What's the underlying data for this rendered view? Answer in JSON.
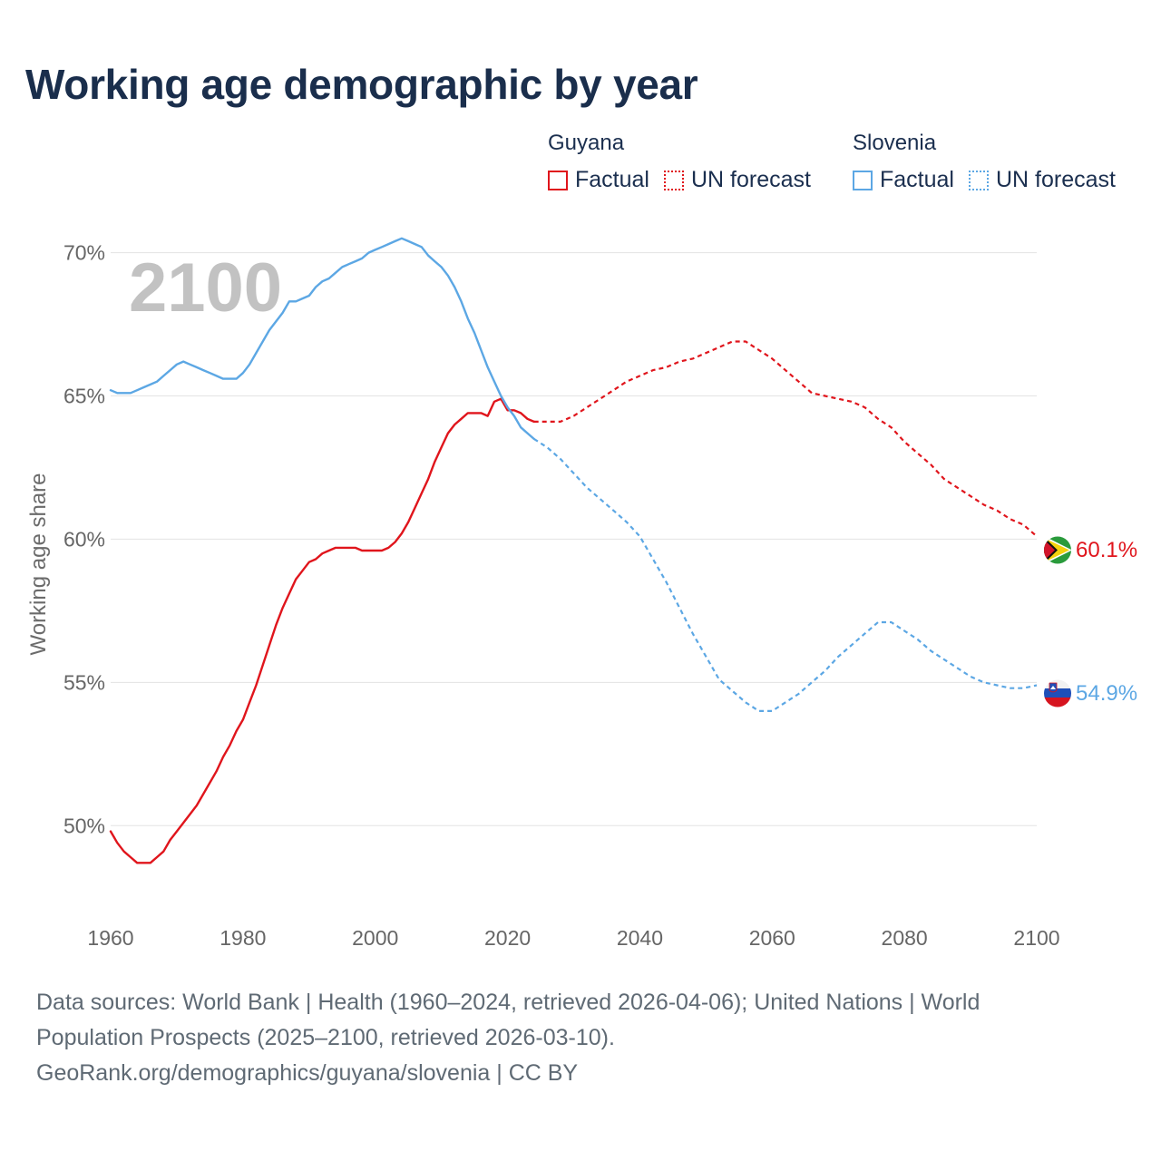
{
  "title": "Working age demographic by year",
  "legend": {
    "groups": [
      {
        "country": "Guyana",
        "color": "#e0151c",
        "factual_label": "Factual",
        "forecast_label": "UN forecast"
      },
      {
        "country": "Slovenia",
        "color": "#5ca7e4",
        "factual_label": "Factual",
        "forecast_label": "UN forecast"
      }
    ]
  },
  "footer": {
    "line1": "Data sources: World Bank | Health (1960–2024, retrieved 2026-04-06); United Nations | World",
    "line2": "Population Prospects (2025–2100, retrieved 2026-03-10).",
    "line3": "GeoRank.org/demographics/guyana/slovenia | CC BY"
  },
  "chart_data": {
    "type": "line",
    "title": "Working age demographic by year",
    "year_label": "2100",
    "xlabel": "",
    "ylabel": "Working age share",
    "xlim": [
      1960,
      2100
    ],
    "ylim": [
      47,
      71
    ],
    "x_ticks": [
      1960,
      1980,
      2000,
      2020,
      2040,
      2060,
      2080,
      2100
    ],
    "y_ticks": [
      50,
      55,
      60,
      65,
      70
    ],
    "y_tick_labels": [
      "50%",
      "55%",
      "60%",
      "65%",
      "70%"
    ],
    "grid": true,
    "factual_end_year": 2024,
    "series": [
      {
        "name": "Guyana",
        "color": "#e0151c",
        "end_label": "60.1%",
        "points": [
          [
            1960,
            49.8
          ],
          [
            1961,
            49.4
          ],
          [
            1962,
            49.1
          ],
          [
            1963,
            48.9
          ],
          [
            1964,
            48.7
          ],
          [
            1965,
            48.7
          ],
          [
            1966,
            48.7
          ],
          [
            1967,
            48.9
          ],
          [
            1968,
            49.1
          ],
          [
            1969,
            49.5
          ],
          [
            1970,
            49.8
          ],
          [
            1971,
            50.1
          ],
          [
            1972,
            50.4
          ],
          [
            1973,
            50.7
          ],
          [
            1974,
            51.1
          ],
          [
            1975,
            51.5
          ],
          [
            1976,
            51.9
          ],
          [
            1977,
            52.4
          ],
          [
            1978,
            52.8
          ],
          [
            1979,
            53.3
          ],
          [
            1980,
            53.7
          ],
          [
            1981,
            54.3
          ],
          [
            1982,
            54.9
          ],
          [
            1983,
            55.6
          ],
          [
            1984,
            56.3
          ],
          [
            1985,
            57.0
          ],
          [
            1986,
            57.6
          ],
          [
            1987,
            58.1
          ],
          [
            1988,
            58.6
          ],
          [
            1989,
            58.9
          ],
          [
            1990,
            59.2
          ],
          [
            1991,
            59.3
          ],
          [
            1992,
            59.5
          ],
          [
            1993,
            59.6
          ],
          [
            1994,
            59.7
          ],
          [
            1995,
            59.7
          ],
          [
            1996,
            59.7
          ],
          [
            1997,
            59.7
          ],
          [
            1998,
            59.6
          ],
          [
            1999,
            59.6
          ],
          [
            2000,
            59.6
          ],
          [
            2001,
            59.6
          ],
          [
            2002,
            59.7
          ],
          [
            2003,
            59.9
          ],
          [
            2004,
            60.2
          ],
          [
            2005,
            60.6
          ],
          [
            2006,
            61.1
          ],
          [
            2007,
            61.6
          ],
          [
            2008,
            62.1
          ],
          [
            2009,
            62.7
          ],
          [
            2010,
            63.2
          ],
          [
            2011,
            63.7
          ],
          [
            2012,
            64.0
          ],
          [
            2013,
            64.2
          ],
          [
            2014,
            64.4
          ],
          [
            2015,
            64.4
          ],
          [
            2016,
            64.4
          ],
          [
            2017,
            64.3
          ],
          [
            2018,
            64.8
          ],
          [
            2019,
            64.9
          ],
          [
            2020,
            64.5
          ],
          [
            2021,
            64.5
          ],
          [
            2022,
            64.4
          ],
          [
            2023,
            64.2
          ],
          [
            2024,
            64.1
          ],
          [
            2026,
            64.1
          ],
          [
            2028,
            64.1
          ],
          [
            2030,
            64.3
          ],
          [
            2032,
            64.6
          ],
          [
            2034,
            64.9
          ],
          [
            2036,
            65.2
          ],
          [
            2038,
            65.5
          ],
          [
            2040,
            65.7
          ],
          [
            2042,
            65.9
          ],
          [
            2044,
            66.0
          ],
          [
            2046,
            66.2
          ],
          [
            2048,
            66.3
          ],
          [
            2050,
            66.5
          ],
          [
            2052,
            66.7
          ],
          [
            2054,
            66.9
          ],
          [
            2056,
            66.9
          ],
          [
            2058,
            66.6
          ],
          [
            2060,
            66.3
          ],
          [
            2062,
            65.9
          ],
          [
            2064,
            65.5
          ],
          [
            2066,
            65.1
          ],
          [
            2068,
            65.0
          ],
          [
            2070,
            64.9
          ],
          [
            2072,
            64.8
          ],
          [
            2074,
            64.6
          ],
          [
            2076,
            64.2
          ],
          [
            2078,
            63.9
          ],
          [
            2080,
            63.4
          ],
          [
            2082,
            63.0
          ],
          [
            2084,
            62.6
          ],
          [
            2086,
            62.1
          ],
          [
            2088,
            61.8
          ],
          [
            2090,
            61.5
          ],
          [
            2092,
            61.2
          ],
          [
            2094,
            61.0
          ],
          [
            2096,
            60.7
          ],
          [
            2098,
            60.5
          ],
          [
            2100,
            60.1
          ]
        ]
      },
      {
        "name": "Slovenia",
        "color": "#5ca7e4",
        "end_label": "54.9%",
        "points": [
          [
            1960,
            65.2
          ],
          [
            1961,
            65.1
          ],
          [
            1962,
            65.1
          ],
          [
            1963,
            65.1
          ],
          [
            1964,
            65.2
          ],
          [
            1965,
            65.3
          ],
          [
            1966,
            65.4
          ],
          [
            1967,
            65.5
          ],
          [
            1968,
            65.7
          ],
          [
            1969,
            65.9
          ],
          [
            1970,
            66.1
          ],
          [
            1971,
            66.2
          ],
          [
            1972,
            66.1
          ],
          [
            1973,
            66.0
          ],
          [
            1974,
            65.9
          ],
          [
            1975,
            65.8
          ],
          [
            1976,
            65.7
          ],
          [
            1977,
            65.6
          ],
          [
            1978,
            65.6
          ],
          [
            1979,
            65.6
          ],
          [
            1980,
            65.8
          ],
          [
            1981,
            66.1
          ],
          [
            1982,
            66.5
          ],
          [
            1983,
            66.9
          ],
          [
            1984,
            67.3
          ],
          [
            1985,
            67.6
          ],
          [
            1986,
            67.9
          ],
          [
            1987,
            68.3
          ],
          [
            1988,
            68.3
          ],
          [
            1989,
            68.4
          ],
          [
            1990,
            68.5
          ],
          [
            1991,
            68.8
          ],
          [
            1992,
            69.0
          ],
          [
            1993,
            69.1
          ],
          [
            1994,
            69.3
          ],
          [
            1995,
            69.5
          ],
          [
            1996,
            69.6
          ],
          [
            1997,
            69.7
          ],
          [
            1998,
            69.8
          ],
          [
            1999,
            70.0
          ],
          [
            2000,
            70.1
          ],
          [
            2001,
            70.2
          ],
          [
            2002,
            70.3
          ],
          [
            2003,
            70.4
          ],
          [
            2004,
            70.5
          ],
          [
            2005,
            70.4
          ],
          [
            2006,
            70.3
          ],
          [
            2007,
            70.2
          ],
          [
            2008,
            69.9
          ],
          [
            2009,
            69.7
          ],
          [
            2010,
            69.5
          ],
          [
            2011,
            69.2
          ],
          [
            2012,
            68.8
          ],
          [
            2013,
            68.3
          ],
          [
            2014,
            67.7
          ],
          [
            2015,
            67.2
          ],
          [
            2016,
            66.6
          ],
          [
            2017,
            66.0
          ],
          [
            2018,
            65.5
          ],
          [
            2019,
            65.0
          ],
          [
            2020,
            64.6
          ],
          [
            2021,
            64.3
          ],
          [
            2022,
            63.9
          ],
          [
            2023,
            63.7
          ],
          [
            2024,
            63.5
          ],
          [
            2026,
            63.2
          ],
          [
            2028,
            62.8
          ],
          [
            2030,
            62.3
          ],
          [
            2032,
            61.8
          ],
          [
            2034,
            61.4
          ],
          [
            2036,
            61.0
          ],
          [
            2038,
            60.6
          ],
          [
            2040,
            60.1
          ],
          [
            2042,
            59.3
          ],
          [
            2044,
            58.5
          ],
          [
            2046,
            57.6
          ],
          [
            2048,
            56.7
          ],
          [
            2050,
            55.9
          ],
          [
            2052,
            55.1
          ],
          [
            2054,
            54.7
          ],
          [
            2056,
            54.3
          ],
          [
            2058,
            54.0
          ],
          [
            2060,
            54.0
          ],
          [
            2062,
            54.3
          ],
          [
            2064,
            54.6
          ],
          [
            2066,
            55.0
          ],
          [
            2068,
            55.4
          ],
          [
            2070,
            55.9
          ],
          [
            2072,
            56.3
          ],
          [
            2074,
            56.7
          ],
          [
            2076,
            57.1
          ],
          [
            2078,
            57.1
          ],
          [
            2080,
            56.8
          ],
          [
            2082,
            56.5
          ],
          [
            2084,
            56.1
          ],
          [
            2086,
            55.8
          ],
          [
            2088,
            55.5
          ],
          [
            2090,
            55.2
          ],
          [
            2092,
            55.0
          ],
          [
            2094,
            54.9
          ],
          [
            2096,
            54.8
          ],
          [
            2098,
            54.8
          ],
          [
            2100,
            54.9
          ]
        ]
      }
    ]
  }
}
